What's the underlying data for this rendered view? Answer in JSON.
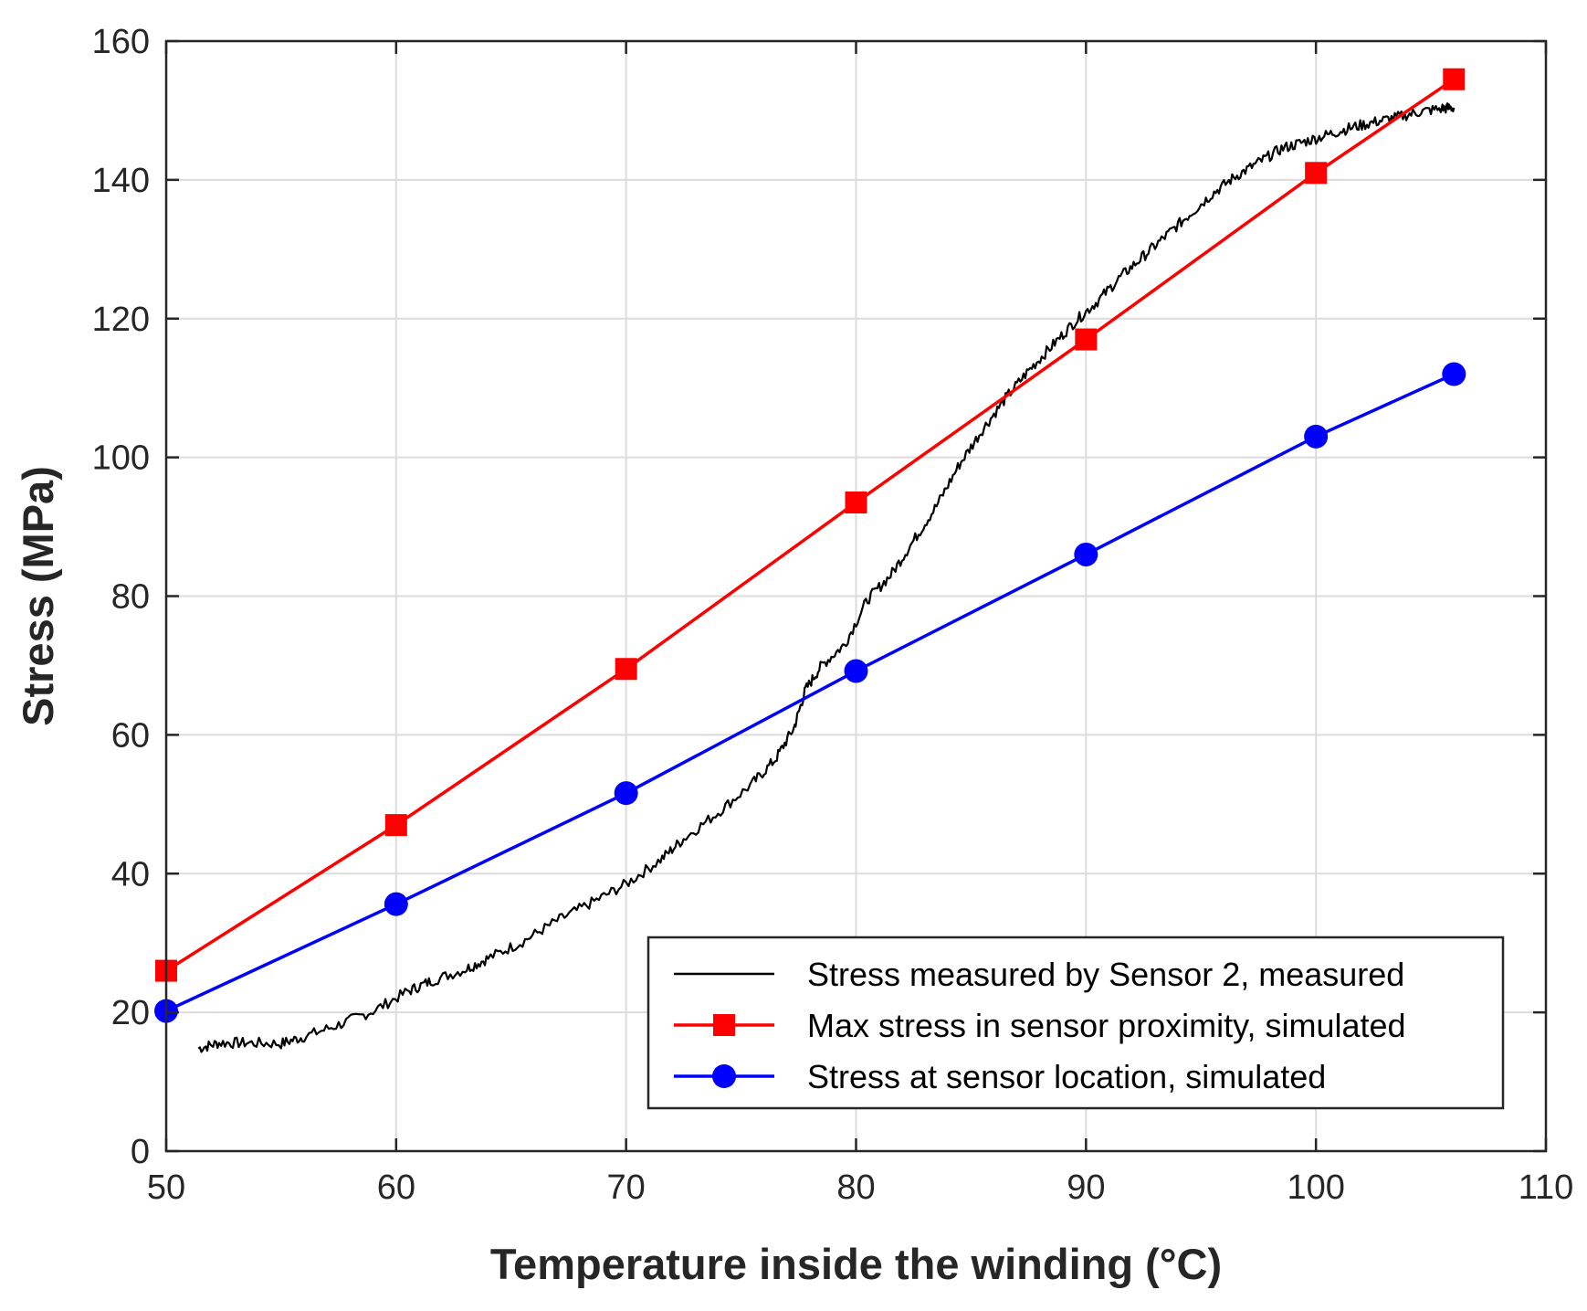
{
  "chart_data": {
    "type": "line",
    "title": "",
    "xlabel": "Temperature inside the winding (°C)",
    "ylabel": "Stress (MPa)",
    "xlim": [
      50,
      110
    ],
    "ylim": [
      0,
      160
    ],
    "xticks": [
      50,
      60,
      70,
      80,
      90,
      100,
      110
    ],
    "yticks": [
      0,
      20,
      40,
      60,
      80,
      100,
      120,
      140,
      160
    ],
    "grid": true,
    "legend_position": "bottom-right",
    "series": [
      {
        "name": "Stress measured by Sensor 2, measured",
        "color": "#000000",
        "marker": "none",
        "x": [
          51.4,
          52.3,
          53.5,
          55.0,
          56.0,
          57.5,
          59.0,
          60.5,
          61.5,
          63.0,
          64.0,
          65.5,
          67.0,
          68.5,
          70.0,
          71.5,
          72.5,
          74.0,
          75.5,
          76.5,
          77.3,
          77.8,
          78.5,
          79.5,
          80.5,
          81.5,
          82.5,
          83.5,
          84.5,
          85.5,
          86.5,
          87.5,
          88.5,
          89.5,
          90.5,
          91.5,
          92.5,
          93.5,
          94.5,
          95.5,
          96.5,
          97.5,
          98.5,
          99.5,
          100.5,
          101.5,
          102.5,
          103.5,
          104.5,
          105.5,
          106.0
        ],
        "y": [
          14.8,
          15.6,
          15.6,
          15.5,
          16.5,
          18.2,
          20.2,
          23.0,
          24.5,
          26.2,
          27.8,
          30.2,
          33.2,
          35.8,
          38.5,
          42.0,
          45.0,
          48.8,
          53.0,
          56.5,
          61.0,
          66.5,
          70.0,
          73.0,
          79.5,
          83.0,
          88.0,
          93.0,
          99.0,
          104.0,
          108.5,
          112.5,
          116.0,
          119.5,
          122.5,
          126.0,
          129.0,
          132.0,
          135.0,
          138.0,
          140.5,
          142.5,
          144.5,
          145.5,
          146.5,
          147.5,
          148.3,
          149.0,
          149.8,
          150.3,
          150.4
        ]
      },
      {
        "name": "Max stress in sensor proximity, simulated",
        "color": "#ff0000",
        "marker": "square",
        "x": [
          50,
          60,
          70,
          80,
          90,
          100,
          106
        ],
        "y": [
          26,
          47,
          69.5,
          93.5,
          117,
          141,
          154.5
        ]
      },
      {
        "name": "Stress at sensor location, simulated",
        "color": "#0000ff",
        "marker": "circle",
        "x": [
          50,
          60,
          70,
          80,
          90,
          100,
          106
        ],
        "y": [
          20.2,
          35.6,
          51.6,
          69.2,
          86,
          103,
          112
        ]
      }
    ]
  }
}
